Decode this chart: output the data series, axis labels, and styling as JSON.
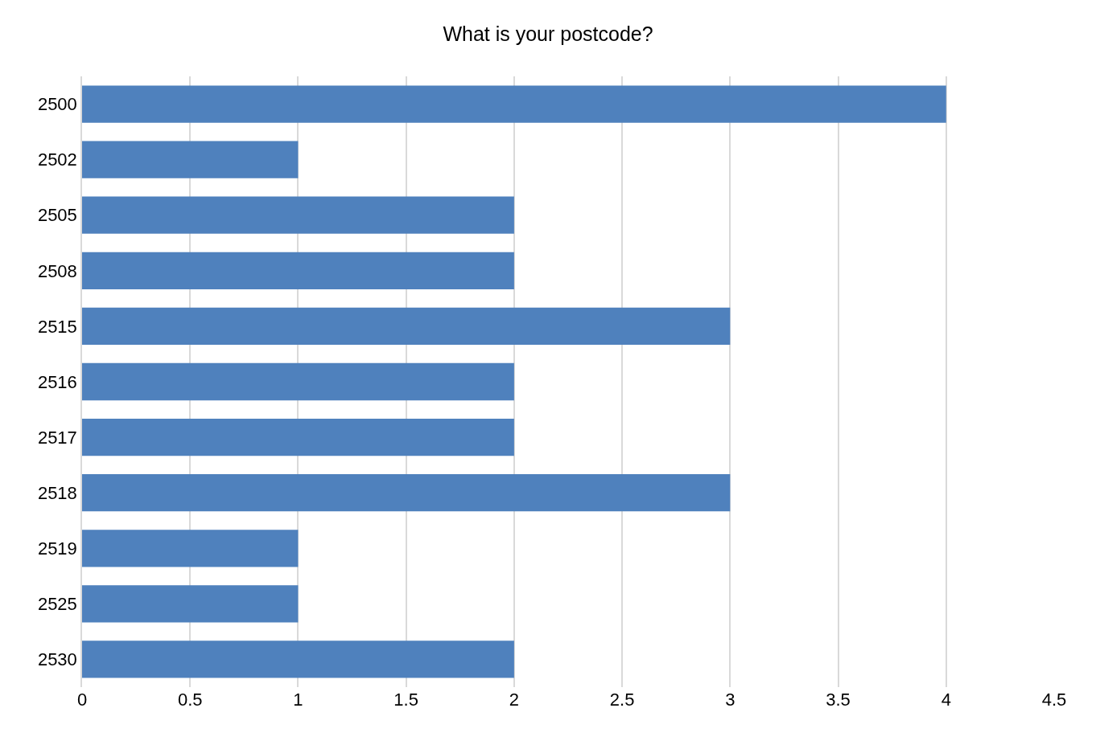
{
  "chart_data": {
    "type": "bar",
    "orientation": "horizontal",
    "title": "What is your postcode?",
    "categories": [
      "2500",
      "2502",
      "2505",
      "2508",
      "2515",
      "2516",
      "2517",
      "2518",
      "2519",
      "2525",
      "2530"
    ],
    "values": [
      4,
      1,
      2,
      2,
      3,
      2,
      2,
      3,
      1,
      1,
      2
    ],
    "color": "#4f81bd",
    "xlim": [
      0,
      4.5
    ],
    "xticks": [
      0,
      0.5,
      1,
      1.5,
      2,
      2.5,
      3,
      3.5,
      4,
      4.5
    ],
    "grid": "x",
    "legend": false
  }
}
